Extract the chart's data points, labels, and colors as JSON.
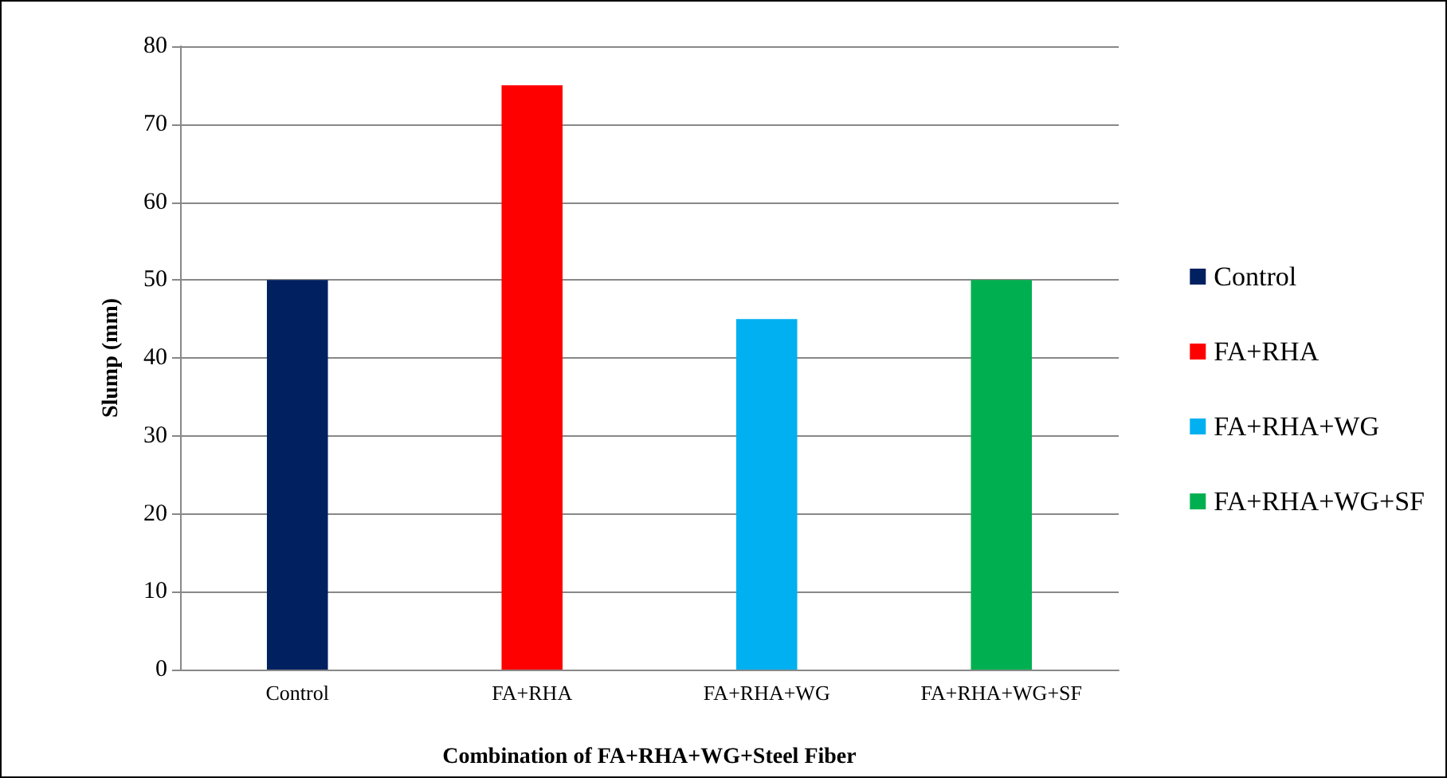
{
  "chart_data": {
    "type": "bar",
    "xlabel": "Combination of FA+RHA+WG+Steel Fiber",
    "ylabel": "Slump (mm)",
    "categories": [
      "Control",
      "FA+RHA",
      "FA+RHA+WG",
      "FA+RHA+WG+SF"
    ],
    "series": [
      {
        "name": "Control",
        "color": "#002060",
        "values": [
          50,
          null,
          null,
          null
        ]
      },
      {
        "name": "FA+RHA",
        "color": "#ff0000",
        "values": [
          null,
          75,
          null,
          null
        ]
      },
      {
        "name": "FA+RHA+WG",
        "color": "#00b0f0",
        "values": [
          null,
          null,
          45,
          null
        ]
      },
      {
        "name": "FA+RHA+WG+SF",
        "color": "#00b050",
        "values": [
          null,
          null,
          null,
          50
        ]
      }
    ],
    "ylim": [
      0,
      80
    ],
    "yticks": [
      0,
      10,
      20,
      30,
      40,
      50,
      60,
      70,
      80
    ],
    "grid": "y",
    "legend": "right"
  }
}
